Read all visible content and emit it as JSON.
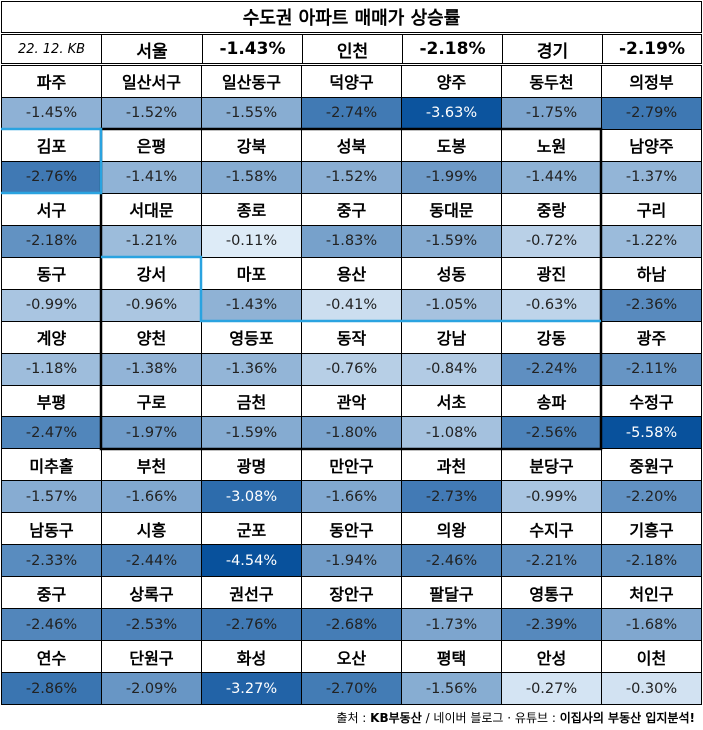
{
  "title": "수도권 아파트 매매가 상승률",
  "header": {
    "date": "22. 12. KB",
    "items": [
      {
        "label": "서울",
        "value": "-1.43%"
      },
      {
        "label": "인천",
        "value": "-2.18%"
      },
      {
        "label": "경기",
        "value": "-2.19%"
      }
    ]
  },
  "rows": [
    [
      {
        "name": "파주",
        "value": "-1.45%"
      },
      {
        "name": "일산서구",
        "value": "-1.52%"
      },
      {
        "name": "일산동구",
        "value": "-1.55%"
      },
      {
        "name": "덕양구",
        "value": "-2.74%"
      },
      {
        "name": "양주",
        "value": "-3.63%"
      },
      {
        "name": "동두천",
        "value": "-1.75%"
      },
      {
        "name": "의정부",
        "value": "-2.79%"
      }
    ],
    [
      {
        "name": "김포",
        "value": "-2.76%"
      },
      {
        "name": "은평",
        "value": "-1.41%"
      },
      {
        "name": "강북",
        "value": "-1.58%"
      },
      {
        "name": "성북",
        "value": "-1.52%"
      },
      {
        "name": "도봉",
        "value": "-1.99%"
      },
      {
        "name": "노원",
        "value": "-1.44%"
      },
      {
        "name": "남양주",
        "value": "-1.37%"
      }
    ],
    [
      {
        "name": "서구",
        "value": "-2.18%"
      },
      {
        "name": "서대문",
        "value": "-1.21%"
      },
      {
        "name": "종로",
        "value": "-0.11%"
      },
      {
        "name": "중구",
        "value": "-1.83%"
      },
      {
        "name": "동대문",
        "value": "-1.59%"
      },
      {
        "name": "중랑",
        "value": "-0.72%"
      },
      {
        "name": "구리",
        "value": "-1.22%"
      }
    ],
    [
      {
        "name": "동구",
        "value": "-0.99%"
      },
      {
        "name": "강서",
        "value": "-0.96%"
      },
      {
        "name": "마포",
        "value": "-1.43%"
      },
      {
        "name": "용산",
        "value": "-0.41%"
      },
      {
        "name": "성동",
        "value": "-1.05%"
      },
      {
        "name": "광진",
        "value": "-0.63%"
      },
      {
        "name": "하남",
        "value": "-2.36%"
      }
    ],
    [
      {
        "name": "계양",
        "value": "-1.18%"
      },
      {
        "name": "양천",
        "value": "-1.38%"
      },
      {
        "name": "영등포",
        "value": "-1.36%"
      },
      {
        "name": "동작",
        "value": "-0.76%"
      },
      {
        "name": "강남",
        "value": "-0.84%"
      },
      {
        "name": "강동",
        "value": "-2.24%"
      },
      {
        "name": "광주",
        "value": "-2.11%"
      }
    ],
    [
      {
        "name": "부평",
        "value": "-2.47%"
      },
      {
        "name": "구로",
        "value": "-1.97%"
      },
      {
        "name": "금천",
        "value": "-1.59%"
      },
      {
        "name": "관악",
        "value": "-1.80%"
      },
      {
        "name": "서초",
        "value": "-1.08%"
      },
      {
        "name": "송파",
        "value": "-2.56%"
      },
      {
        "name": "수정구",
        "value": "-5.58%"
      }
    ],
    [
      {
        "name": "미추홀",
        "value": "-1.57%"
      },
      {
        "name": "부천",
        "value": "-1.66%"
      },
      {
        "name": "광명",
        "value": "-3.08%"
      },
      {
        "name": "만안구",
        "value": "-1.66%"
      },
      {
        "name": "과천",
        "value": "-2.73%"
      },
      {
        "name": "분당구",
        "value": "-0.99%"
      },
      {
        "name": "중원구",
        "value": "-2.20%"
      }
    ],
    [
      {
        "name": "남동구",
        "value": "-2.33%"
      },
      {
        "name": "시흥",
        "value": "-2.44%"
      },
      {
        "name": "군포",
        "value": "-4.54%"
      },
      {
        "name": "동안구",
        "value": "-1.94%"
      },
      {
        "name": "의왕",
        "value": "-2.46%"
      },
      {
        "name": "수지구",
        "value": "-2.21%"
      },
      {
        "name": "기흥구",
        "value": "-2.18%"
      }
    ],
    [
      {
        "name": "중구",
        "value": "-2.46%"
      },
      {
        "name": "상록구",
        "value": "-2.53%"
      },
      {
        "name": "권선구",
        "value": "-2.76%"
      },
      {
        "name": "장안구",
        "value": "-2.68%"
      },
      {
        "name": "팔달구",
        "value": "-1.73%"
      },
      {
        "name": "영통구",
        "value": "-2.39%"
      },
      {
        "name": "처인구",
        "value": "-1.68%"
      }
    ],
    [
      {
        "name": "연수",
        "value": "-2.86%"
      },
      {
        "name": "단원구",
        "value": "-2.09%"
      },
      {
        "name": "화성",
        "value": "-3.27%"
      },
      {
        "name": "오산",
        "value": "-2.70%"
      },
      {
        "name": "평택",
        "value": "-1.56%"
      },
      {
        "name": "안성",
        "value": "-0.27%"
      },
      {
        "name": "이천",
        "value": "-0.30%"
      }
    ]
  ],
  "source": {
    "prefix": "출처 : ",
    "kb": "KB부동산",
    "slash": " / ",
    "rest": "네이버 블로그 · 유튜브 : ",
    "channel": "이집사의 부동산 입지분석!"
  },
  "colors": {
    "border": "#000000",
    "seoul_outline": "#000000",
    "incheon_outline": "#2aa3e0",
    "scale_low": "#deebf7",
    "scale_high": "#08519c"
  }
}
